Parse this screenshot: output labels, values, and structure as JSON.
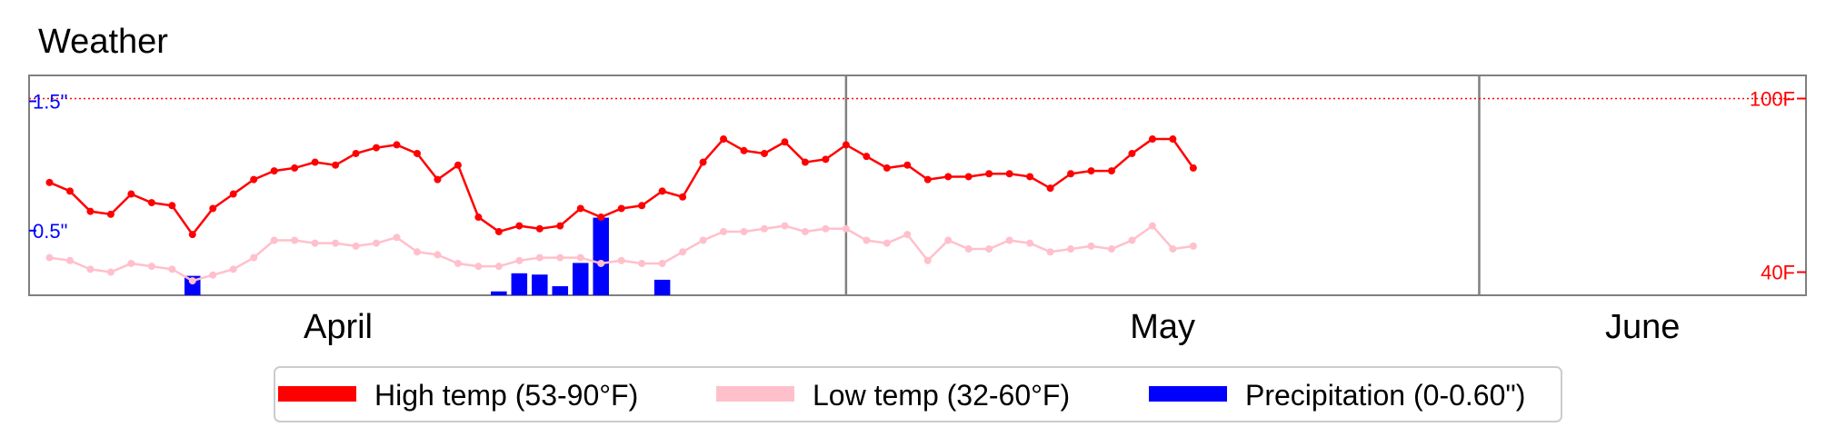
{
  "chart_data": {
    "type": "line",
    "title": "Weather",
    "months": [
      "April",
      "May",
      "June"
    ],
    "month_boundaries": [
      "2009-05-01",
      "2009-06-01"
    ],
    "x_range": [
      "2009-03-22",
      "2009-06-17"
    ],
    "dates": [
      "2009-03-22",
      "2009-03-23",
      "2009-03-24",
      "2009-03-25",
      "2009-03-26",
      "2009-03-27",
      "2009-03-28",
      "2009-03-29",
      "2009-03-30",
      "2009-03-31",
      "2009-04-01",
      "2009-04-02",
      "2009-04-03",
      "2009-04-04",
      "2009-04-05",
      "2009-04-06",
      "2009-04-07",
      "2009-04-08",
      "2009-04-09",
      "2009-04-10",
      "2009-04-11",
      "2009-04-12",
      "2009-04-13",
      "2009-04-14",
      "2009-04-15",
      "2009-04-16",
      "2009-04-17",
      "2009-04-18",
      "2009-04-19",
      "2009-04-20",
      "2009-04-21",
      "2009-04-22",
      "2009-04-23",
      "2009-04-24",
      "2009-04-25",
      "2009-04-26",
      "2009-04-27",
      "2009-04-28",
      "2009-04-29",
      "2009-04-30",
      "2009-05-01",
      "2009-05-02",
      "2009-05-03",
      "2009-05-04",
      "2009-05-05",
      "2009-05-06",
      "2009-05-07",
      "2009-05-08",
      "2009-05-09",
      "2009-05-10",
      "2009-05-11",
      "2009-05-12",
      "2009-05-13",
      "2009-05-14",
      "2009-05-15",
      "2009-05-16",
      "2009-05-17",
      "2009-05-18",
      "2009-05-19",
      "2009-05-20",
      "2009-05-21",
      "2009-05-22",
      "2009-05-23",
      "2009-05-24",
      "2009-05-25",
      "2009-05-26",
      "2009-05-27",
      "2009-05-28",
      "2009-05-29",
      "2009-05-30",
      "2009-05-31",
      "2009-06-01",
      "2009-06-02",
      "2009-06-03",
      "2009-06-04",
      "2009-06-05",
      "2009-06-06",
      "2009-06-07",
      "2009-06-08",
      "2009-06-09",
      "2009-06-10",
      "2009-06-11",
      "2009-06-12",
      "2009-06-13",
      "2009-06-14",
      "2009-06-15",
      "2009-06-16",
      "2009-06-17"
    ],
    "series": [
      {
        "name": "High temp (53-90°F)",
        "color": "#ff0000",
        "axis": "temp",
        "points": [
          [
            "2009-03-23",
            71
          ],
          [
            "2009-03-24",
            68
          ],
          [
            "2009-03-25",
            61
          ],
          [
            "2009-03-26",
            60
          ],
          [
            "2009-03-27",
            67
          ],
          [
            "2009-03-28",
            64
          ],
          [
            "2009-03-29",
            63
          ],
          [
            "2009-03-30",
            53
          ],
          [
            "2009-03-31",
            62
          ],
          [
            "2009-04-01",
            67
          ],
          [
            "2009-04-02",
            72
          ],
          [
            "2009-04-03",
            75
          ],
          [
            "2009-04-04",
            76
          ],
          [
            "2009-04-05",
            78
          ],
          [
            "2009-04-06",
            77
          ],
          [
            "2009-04-07",
            81
          ],
          [
            "2009-04-08",
            83
          ],
          [
            "2009-04-09",
            84
          ],
          [
            "2009-04-10",
            81
          ],
          [
            "2009-04-11",
            72
          ],
          [
            "2009-04-12",
            77
          ],
          [
            "2009-04-13",
            59
          ],
          [
            "2009-04-14",
            54
          ],
          [
            "2009-04-15",
            56
          ],
          [
            "2009-04-16",
            55
          ],
          [
            "2009-04-17",
            56
          ],
          [
            "2009-04-18",
            62
          ],
          [
            "2009-04-19",
            59
          ],
          [
            "2009-04-20",
            62
          ],
          [
            "2009-04-21",
            63
          ],
          [
            "2009-04-22",
            68
          ],
          [
            "2009-04-23",
            66
          ],
          [
            "2009-04-24",
            78
          ],
          [
            "2009-04-25",
            86
          ],
          [
            "2009-04-26",
            82
          ],
          [
            "2009-04-27",
            81
          ],
          [
            "2009-04-28",
            85
          ],
          [
            "2009-04-29",
            78
          ],
          [
            "2009-04-30",
            79
          ],
          [
            "2009-05-01",
            84
          ],
          [
            "2009-05-02",
            80
          ],
          [
            "2009-05-03",
            76
          ],
          [
            "2009-05-04",
            77
          ],
          [
            "2009-05-05",
            72
          ],
          [
            "2009-05-06",
            73
          ],
          [
            "2009-05-07",
            73
          ],
          [
            "2009-05-08",
            74
          ],
          [
            "2009-05-09",
            74
          ],
          [
            "2009-05-10",
            73
          ],
          [
            "2009-05-11",
            69
          ],
          [
            "2009-05-12",
            74
          ],
          [
            "2009-05-13",
            75
          ],
          [
            "2009-05-14",
            75
          ],
          [
            "2009-05-15",
            81
          ],
          [
            "2009-05-16",
            86
          ],
          [
            "2009-05-17",
            86
          ],
          [
            "2009-05-18",
            76
          ]
        ]
      },
      {
        "name": "Low temp (32-60°F)",
        "color": "#ffc0cb",
        "axis": "temp",
        "points": [
          [
            "2009-03-23",
            45
          ],
          [
            "2009-03-24",
            44
          ],
          [
            "2009-03-25",
            41
          ],
          [
            "2009-03-26",
            40
          ],
          [
            "2009-03-27",
            43
          ],
          [
            "2009-03-28",
            42
          ],
          [
            "2009-03-29",
            41
          ],
          [
            "2009-03-30",
            37
          ],
          [
            "2009-03-31",
            39
          ],
          [
            "2009-04-01",
            41
          ],
          [
            "2009-04-02",
            45
          ],
          [
            "2009-04-03",
            51
          ],
          [
            "2009-04-04",
            51
          ],
          [
            "2009-04-05",
            50
          ],
          [
            "2009-04-06",
            50
          ],
          [
            "2009-04-07",
            49
          ],
          [
            "2009-04-08",
            50
          ],
          [
            "2009-04-09",
            52
          ],
          [
            "2009-04-10",
            47
          ],
          [
            "2009-04-11",
            46
          ],
          [
            "2009-04-12",
            43
          ],
          [
            "2009-04-13",
            42
          ],
          [
            "2009-04-14",
            42
          ],
          [
            "2009-04-15",
            44
          ],
          [
            "2009-04-16",
            45
          ],
          [
            "2009-04-17",
            45
          ],
          [
            "2009-04-18",
            45
          ],
          [
            "2009-04-19",
            43
          ],
          [
            "2009-04-20",
            44
          ],
          [
            "2009-04-21",
            43
          ],
          [
            "2009-04-22",
            43
          ],
          [
            "2009-04-23",
            47
          ],
          [
            "2009-04-24",
            51
          ],
          [
            "2009-04-25",
            54
          ],
          [
            "2009-04-26",
            54
          ],
          [
            "2009-04-27",
            55
          ],
          [
            "2009-04-28",
            56
          ],
          [
            "2009-04-29",
            54
          ],
          [
            "2009-04-30",
            55
          ],
          [
            "2009-05-01",
            55
          ],
          [
            "2009-05-02",
            51
          ],
          [
            "2009-05-03",
            50
          ],
          [
            "2009-05-04",
            53
          ],
          [
            "2009-05-05",
            44
          ],
          [
            "2009-05-06",
            51
          ],
          [
            "2009-05-07",
            48
          ],
          [
            "2009-05-08",
            48
          ],
          [
            "2009-05-09",
            51
          ],
          [
            "2009-05-10",
            50
          ],
          [
            "2009-05-11",
            47
          ],
          [
            "2009-05-12",
            48
          ],
          [
            "2009-05-13",
            49
          ],
          [
            "2009-05-14",
            48
          ],
          [
            "2009-05-15",
            51
          ],
          [
            "2009-05-16",
            56
          ],
          [
            "2009-05-17",
            48
          ],
          [
            "2009-05-18",
            49
          ]
        ]
      },
      {
        "name": "Precipitation (0-0.60\")",
        "color": "#0000ff",
        "axis": "precip",
        "type": "bar",
        "points": [
          [
            "2009-03-30",
            0.15
          ],
          [
            "2009-04-14",
            0.03
          ],
          [
            "2009-04-15",
            0.17
          ],
          [
            "2009-04-16",
            0.16
          ],
          [
            "2009-04-17",
            0.07
          ],
          [
            "2009-04-18",
            0.25
          ],
          [
            "2009-04-19",
            0.6
          ],
          [
            "2009-04-22",
            0.12
          ]
        ]
      }
    ],
    "temp_axis": {
      "side": "right",
      "ticks": [
        {
          "value": 100,
          "label": "100F"
        },
        {
          "value": 40,
          "label": "40F"
        }
      ],
      "range": [
        32,
        108
      ]
    },
    "precip_axis": {
      "side": "left",
      "ticks": [
        {
          "value": 1.5,
          "label": "1.5\""
        },
        {
          "value": 0.5,
          "label": "0.5\""
        }
      ],
      "range": [
        0,
        1.7
      ]
    },
    "reference_line": {
      "value": 100,
      "axis": "temp",
      "style": "dotted",
      "color": "#ff0000"
    },
    "legend": {
      "placement": "bottom-center",
      "entries": [
        {
          "label": "High temp (53-90°F)",
          "color": "#ff0000"
        },
        {
          "label": "Low temp (32-60°F)",
          "color": "#ffc0cb"
        },
        {
          "label": "Precipitation (0-0.60\")",
          "color": "#0000ff"
        }
      ]
    },
    "grid": false
  }
}
